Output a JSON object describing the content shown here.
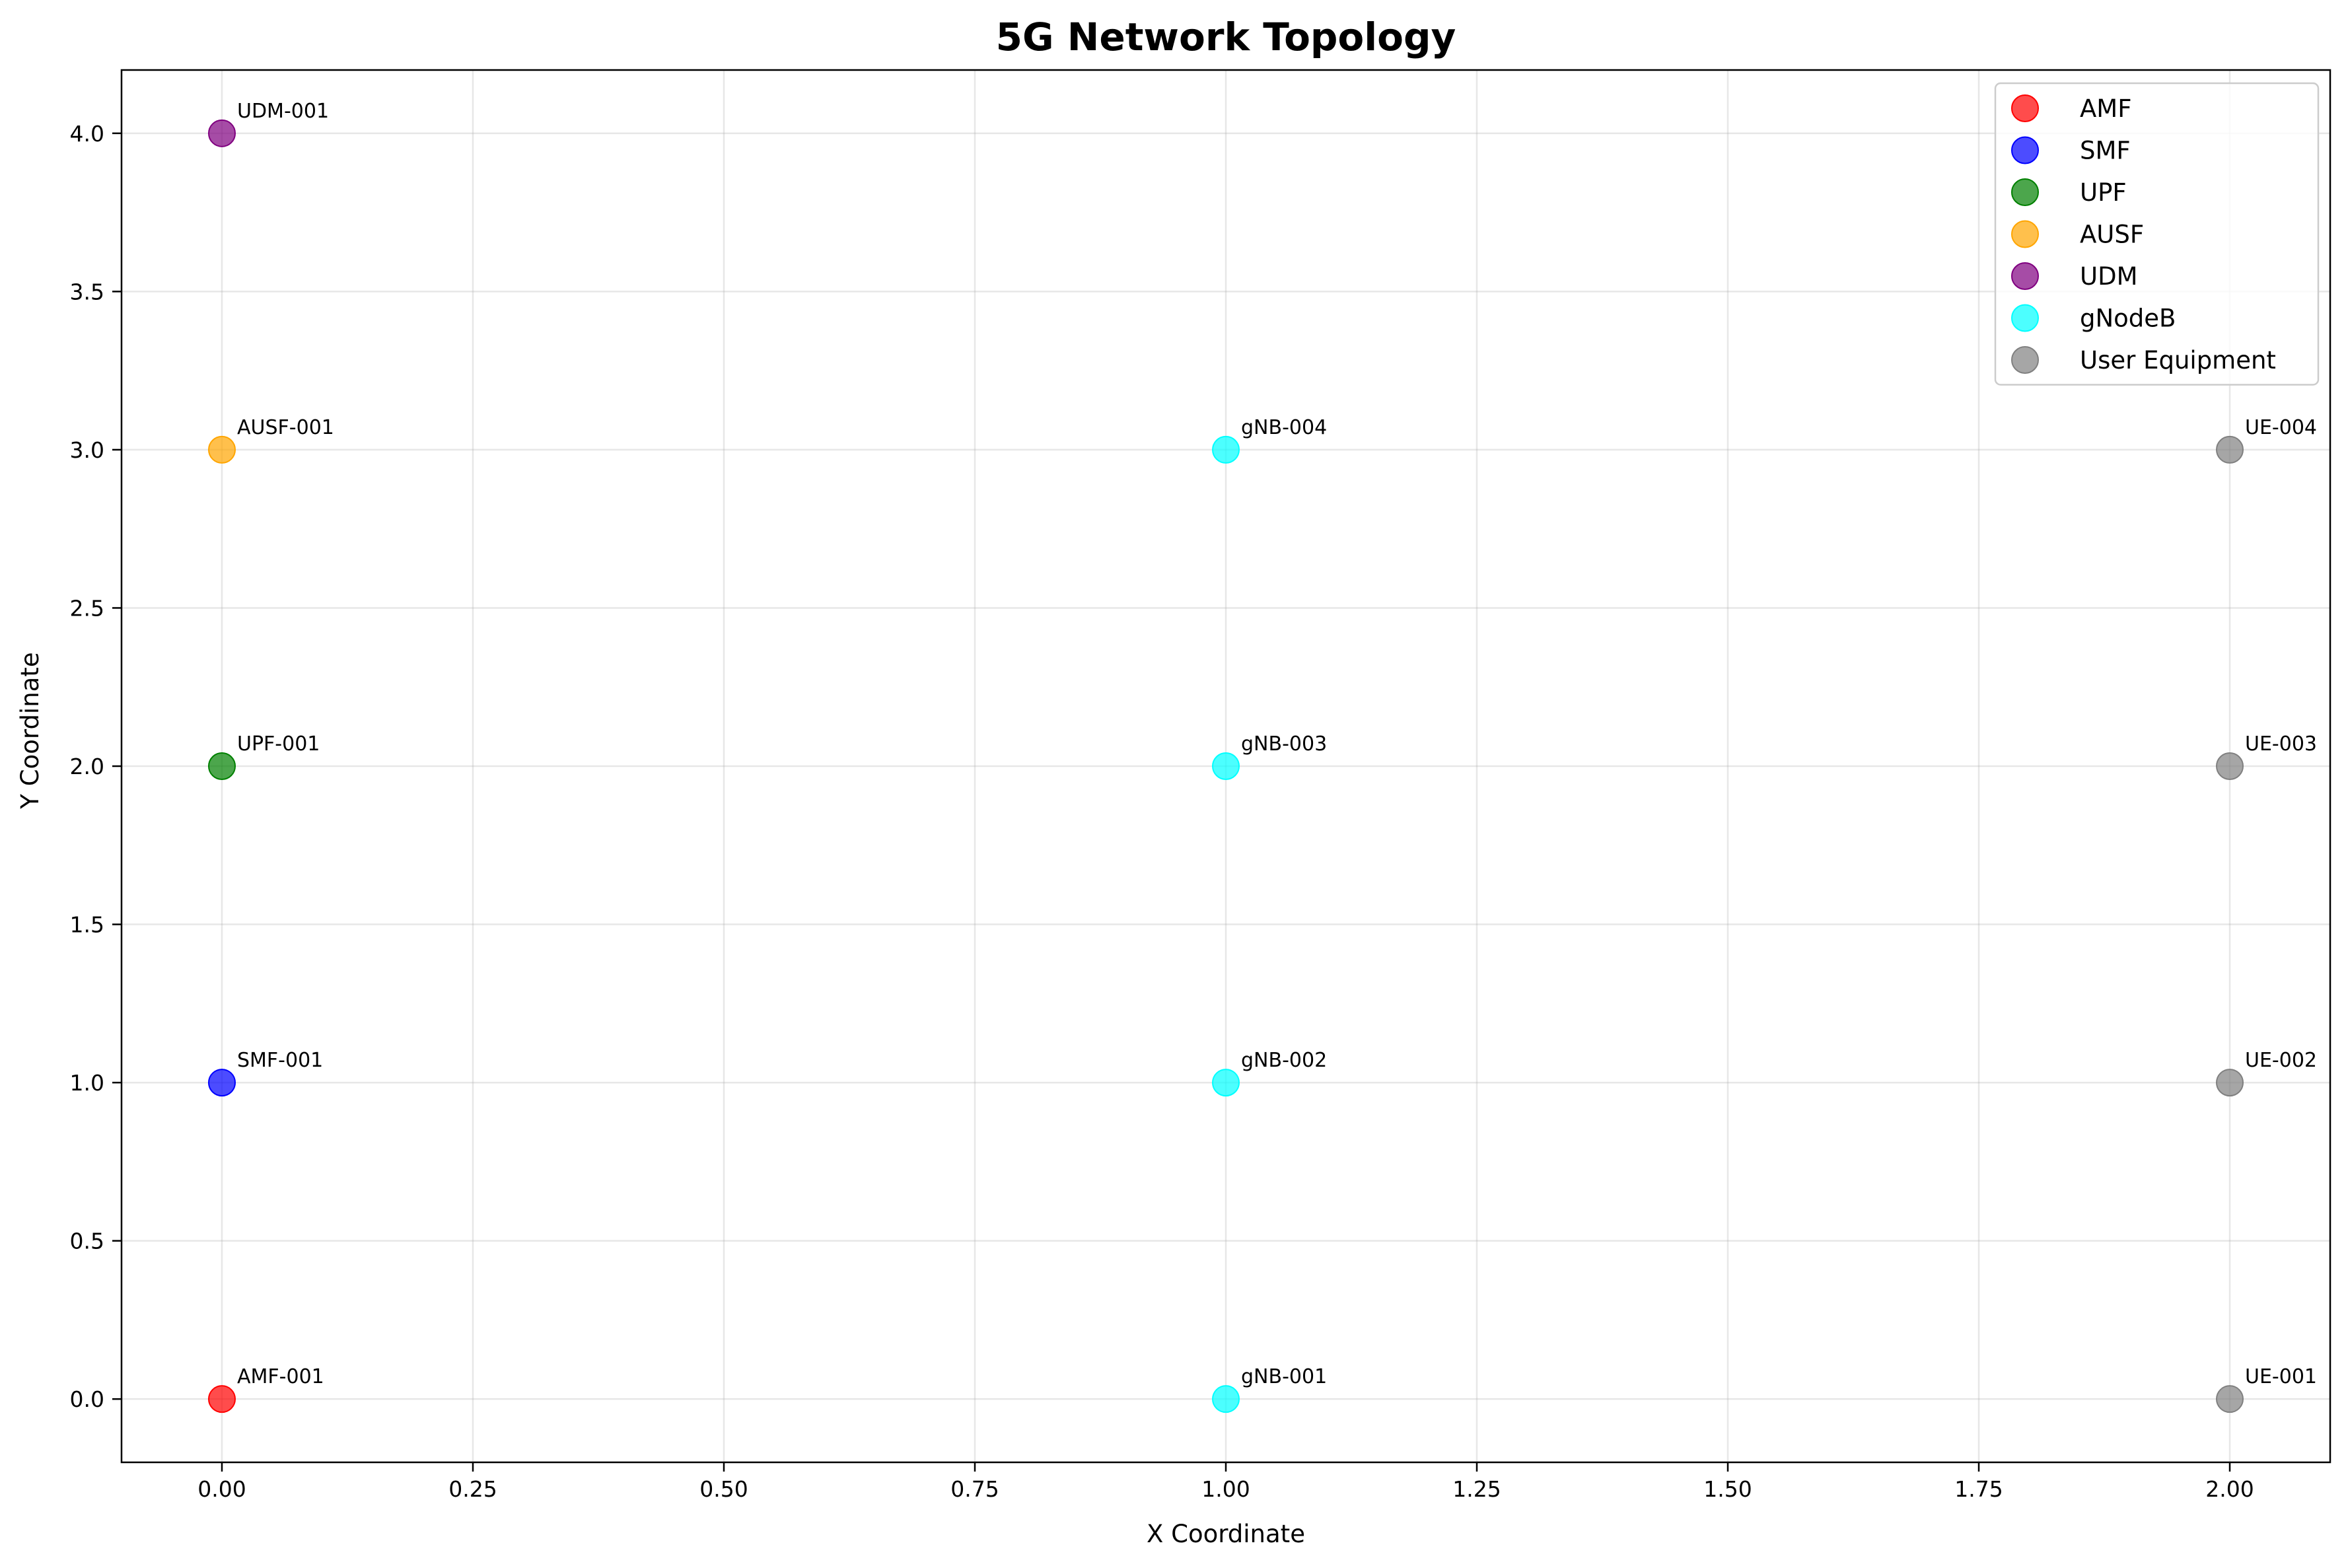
{
  "chart_data": {
    "type": "scatter",
    "title": "5G Network Topology",
    "xlabel": "X Coordinate",
    "ylabel": "Y Coordinate",
    "xlim": [
      -0.1,
      2.1
    ],
    "ylim": [
      -0.2,
      4.2
    ],
    "xticks": [
      "0.00",
      "0.25",
      "0.50",
      "0.75",
      "1.00",
      "1.25",
      "1.50",
      "1.75",
      "2.00"
    ],
    "yticks": [
      "0.0",
      "0.5",
      "1.0",
      "1.5",
      "2.0",
      "2.5",
      "3.0",
      "3.5",
      "4.0"
    ],
    "grid": true,
    "legend_position": "top-right",
    "series": [
      {
        "name": "AMF",
        "color": "#ff0000",
        "points": [
          {
            "x": 0,
            "y": 0,
            "label": "AMF-001"
          }
        ]
      },
      {
        "name": "SMF",
        "color": "#0000ff",
        "points": [
          {
            "x": 0,
            "y": 1,
            "label": "SMF-001"
          }
        ]
      },
      {
        "name": "UPF",
        "color": "#008000",
        "points": [
          {
            "x": 0,
            "y": 2,
            "label": "UPF-001"
          }
        ]
      },
      {
        "name": "AUSF",
        "color": "#ffa500",
        "points": [
          {
            "x": 0,
            "y": 3,
            "label": "AUSF-001"
          }
        ]
      },
      {
        "name": "UDM",
        "color": "#800080",
        "points": [
          {
            "x": 0,
            "y": 4,
            "label": "UDM-001"
          }
        ]
      },
      {
        "name": "gNodeB",
        "color": "#00ffff",
        "points": [
          {
            "x": 1,
            "y": 0,
            "label": "gNB-001"
          },
          {
            "x": 1,
            "y": 1,
            "label": "gNB-002"
          },
          {
            "x": 1,
            "y": 2,
            "label": "gNB-003"
          },
          {
            "x": 1,
            "y": 3,
            "label": "gNB-004"
          }
        ]
      },
      {
        "name": "User Equipment",
        "color": "#808080",
        "points": [
          {
            "x": 2,
            "y": 0,
            "label": "UE-001"
          },
          {
            "x": 2,
            "y": 1,
            "label": "UE-002"
          },
          {
            "x": 2,
            "y": 2,
            "label": "UE-003"
          },
          {
            "x": 2,
            "y": 3,
            "label": "UE-004"
          }
        ]
      }
    ]
  }
}
